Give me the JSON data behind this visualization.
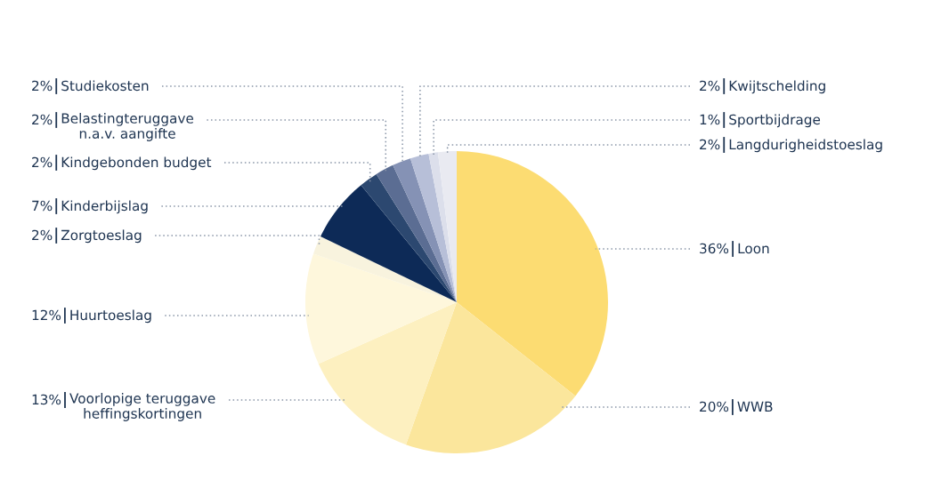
{
  "chart_data": {
    "type": "pie",
    "categories": [
      "Loon",
      "WWB",
      "Voorlopige teruggave\nheffingskortingen",
      "Huurtoeslag",
      "Zorgtoeslag",
      "Kinderbijslag",
      "Kindgebonden budget",
      "Belastingteruggave\nn.a.v. aangifte",
      "Studiekosten",
      "Kwijtschelding",
      "Sportbijdrage",
      "Langdurigheidstoeslag"
    ],
    "values": [
      36,
      20,
      13,
      12,
      2,
      7,
      2,
      2,
      2,
      2,
      1,
      2
    ],
    "value_labels": [
      "36%",
      "20%",
      "13%",
      "12%",
      "2%",
      "7%",
      "2%",
      "2%",
      "2%",
      "2%",
      "1%",
      "2%"
    ],
    "colors": [
      "#fcdc72",
      "#fbe69c",
      "#fdf0c0",
      "#fef7dc",
      "#f8f3de",
      "#0d2a57",
      "#2c4870",
      "#5b6d93",
      "#8592b5",
      "#b7bfd8",
      "#dcdfeb",
      "#e9eaf1"
    ],
    "legend": false
  }
}
